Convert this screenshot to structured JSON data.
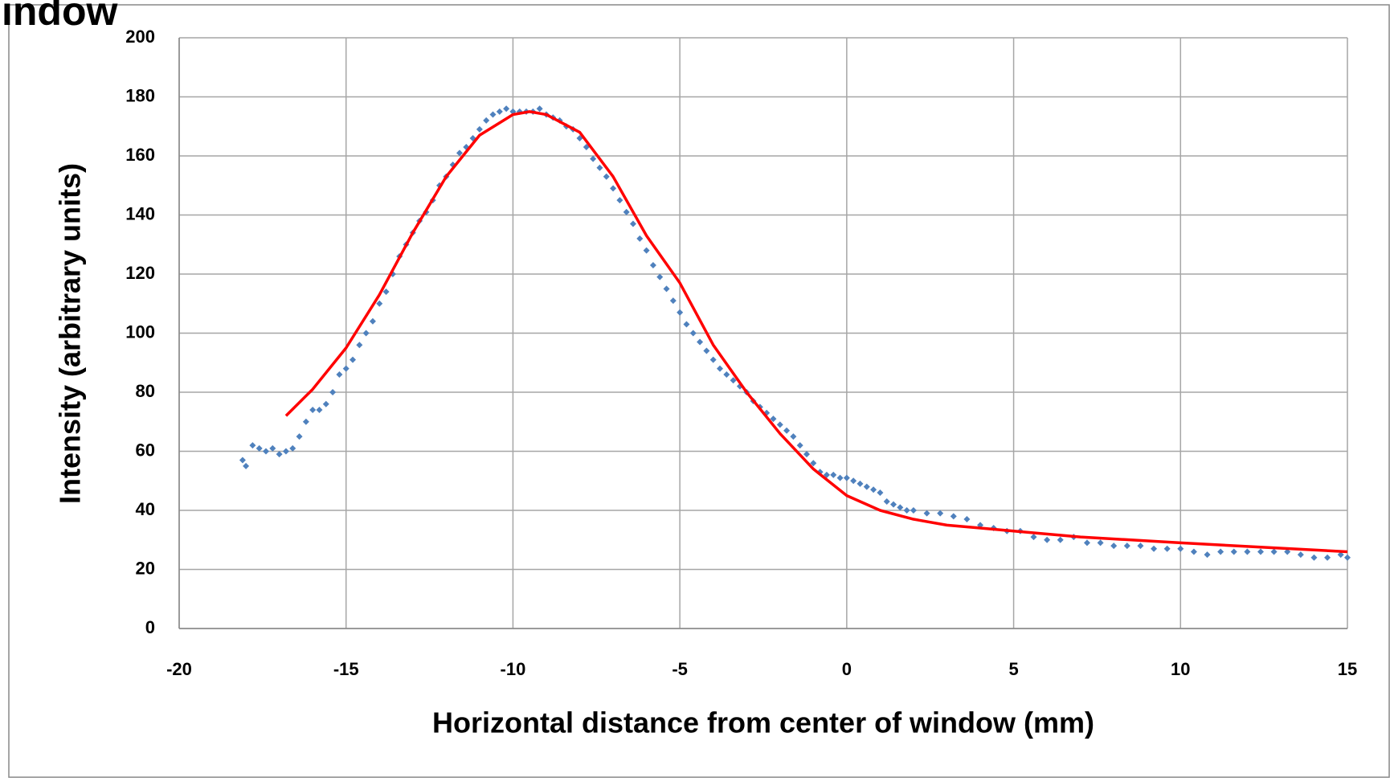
{
  "chart_data": {
    "type": "scatter",
    "title": "indow",
    "x_label": "Horizontal distance from center of window (mm)",
    "y_label": "Intensity (arbitrary units)",
    "xlim": [
      -20,
      15
    ],
    "xticks": [
      -20,
      -15,
      -10,
      -5,
      0,
      5,
      10,
      15
    ],
    "ylim": [
      0,
      200
    ],
    "yticks": [
      0,
      20,
      40,
      60,
      80,
      100,
      120,
      140,
      160,
      180,
      200
    ],
    "grid": true,
    "series": [
      {
        "type": "scatter",
        "color": "#4f81bd",
        "x": [
          -18.1,
          -18.0,
          -17.8,
          -17.6,
          -17.4,
          -17.2,
          -17.0,
          -16.8,
          -16.6,
          -16.4,
          -16.2,
          -16.0,
          -15.8,
          -15.6,
          -15.4,
          -15.2,
          -15.0,
          -14.8,
          -14.6,
          -14.4,
          -14.2,
          -14.0,
          -13.8,
          -13.6,
          -13.4,
          -13.2,
          -13.0,
          -12.8,
          -12.6,
          -12.4,
          -12.2,
          -12.0,
          -11.8,
          -11.6,
          -11.4,
          -11.2,
          -11.0,
          -10.8,
          -10.6,
          -10.4,
          -10.2,
          -10.0,
          -9.8,
          -9.6,
          -9.4,
          -9.2,
          -9.0,
          -8.8,
          -8.6,
          -8.4,
          -8.2,
          -8.0,
          -7.8,
          -7.6,
          -7.4,
          -7.2,
          -7.0,
          -6.8,
          -6.6,
          -6.4,
          -6.2,
          -6.0,
          -5.8,
          -5.6,
          -5.4,
          -5.2,
          -5.0,
          -4.8,
          -4.6,
          -4.4,
          -4.2,
          -4.0,
          -3.8,
          -3.6,
          -3.4,
          -3.2,
          -3.0,
          -2.8,
          -2.6,
          -2.4,
          -2.2,
          -2.0,
          -1.8,
          -1.6,
          -1.4,
          -1.2,
          -1.0,
          -0.8,
          -0.6,
          -0.4,
          -0.2,
          0.0,
          0.2,
          0.4,
          0.6,
          0.8,
          1.0,
          1.2,
          1.4,
          1.6,
          1.8,
          2.0,
          2.4,
          2.8,
          3.2,
          3.6,
          4.0,
          4.4,
          4.8,
          5.2,
          5.6,
          6.0,
          6.4,
          6.8,
          7.2,
          7.6,
          8.0,
          8.4,
          8.8,
          9.2,
          9.6,
          10.0,
          10.4,
          10.8,
          11.2,
          11.6,
          12.0,
          12.4,
          12.8,
          13.2,
          13.6,
          14.0,
          14.4,
          14.8,
          15.0
        ],
        "values": [
          57,
          55,
          62,
          61,
          60,
          61,
          59,
          60,
          61,
          65,
          70,
          74,
          74,
          76,
          80,
          86,
          88,
          91,
          96,
          100,
          104,
          110,
          114,
          120,
          126,
          130,
          134,
          138,
          141,
          145,
          150,
          153,
          157,
          161,
          163,
          166,
          169,
          172,
          174,
          175,
          176,
          175,
          175,
          175,
          175,
          176,
          174,
          173,
          172,
          170,
          169,
          166,
          163,
          159,
          156,
          153,
          149,
          145,
          141,
          137,
          132,
          128,
          123,
          119,
          115,
          111,
          107,
          103,
          100,
          97,
          94,
          91,
          88,
          86,
          84,
          82,
          80,
          77,
          75,
          73,
          71,
          69,
          67,
          65,
          62,
          59,
          56,
          53,
          52,
          52,
          51,
          51,
          50,
          49,
          48,
          47,
          46,
          43,
          42,
          41,
          40,
          40,
          39,
          39,
          38,
          37,
          35,
          34,
          33,
          33,
          31,
          30,
          30,
          31,
          29,
          29,
          28,
          28,
          28,
          27,
          27,
          27,
          26,
          25,
          26,
          26,
          26,
          26,
          26,
          26,
          25,
          24,
          24,
          25,
          24
        ]
      },
      {
        "type": "line",
        "color": "#ff0000",
        "x": [
          -16.8,
          -16,
          -15,
          -14,
          -13,
          -12,
          -11,
          -10,
          -9.5,
          -9,
          -8,
          -7,
          -6,
          -5,
          -4,
          -3,
          -2,
          -1,
          0,
          1,
          2,
          3,
          4,
          5,
          7,
          10,
          15
        ],
        "values": [
          72,
          81,
          95,
          113,
          134,
          153,
          167,
          174,
          175,
          174,
          168,
          153,
          133,
          117,
          96,
          80,
          66,
          54,
          45,
          40,
          37,
          35,
          34,
          33,
          31,
          29,
          26
        ]
      }
    ]
  }
}
